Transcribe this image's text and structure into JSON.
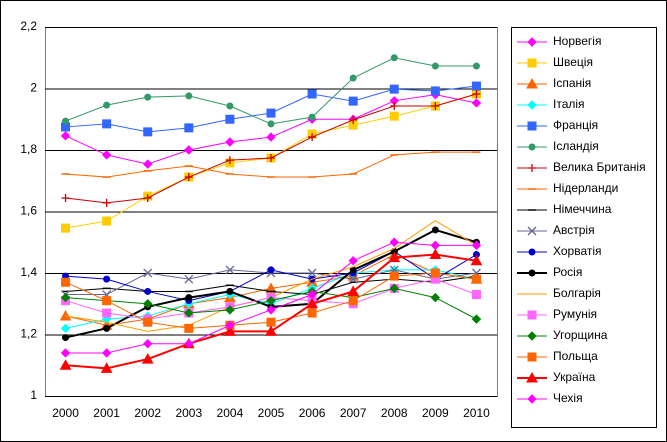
{
  "chart_data": {
    "type": "line",
    "categories": [
      "2000",
      "2001",
      "2002",
      "2003",
      "2004",
      "2005",
      "2006",
      "2007",
      "2008",
      "2009",
      "2010"
    ],
    "ylim": [
      1,
      2.2
    ],
    "yticks": [
      1,
      {
        "value": 1.2,
        "label": "1,2"
      },
      {
        "value": 1.4,
        "label": "1,4"
      },
      {
        "value": 1.6,
        "label": "1,6"
      },
      {
        "value": 1.8,
        "label": "1,8"
      },
      2,
      {
        "value": 2.2,
        "label": "2,2"
      }
    ],
    "grid": true,
    "legend": "right",
    "series": [
      {
        "name": "Норвегія",
        "color": "#ff00ff",
        "marker": "diamond",
        "values": [
          1.846,
          1.784,
          1.754,
          1.8,
          1.826,
          1.842,
          1.9,
          1.9,
          1.96,
          1.98,
          1.953
        ]
      },
      {
        "name": "Швеція",
        "color": "#ffcc00",
        "marker": "square",
        "values": [
          1.546,
          1.569,
          1.65,
          1.712,
          1.758,
          1.774,
          1.852,
          1.881,
          1.91,
          1.943,
          1.982
        ]
      },
      {
        "name": "Іспанія",
        "color": "#ff6600",
        "marker": "triangle",
        "values": [
          1.26,
          1.23,
          1.25,
          1.3,
          1.32,
          1.35,
          1.37,
          1.39,
          1.46,
          1.4,
          1.38
        ]
      },
      {
        "name": "Італія",
        "color": "#00ffff",
        "marker": "diamond",
        "values": [
          1.22,
          1.25,
          1.26,
          1.3,
          1.33,
          1.3,
          1.35,
          1.4,
          1.41,
          1.41,
          1.38
        ]
      },
      {
        "name": "Франція",
        "color": "#3366ff",
        "marker": "square",
        "values": [
          1.875,
          1.885,
          1.859,
          1.872,
          1.9,
          1.92,
          1.982,
          1.959,
          1.998,
          1.992,
          2.008
        ]
      },
      {
        "name": "Ісландія",
        "color": "#339966",
        "marker": "circle",
        "values": [
          1.894,
          1.946,
          1.972,
          1.976,
          1.943,
          1.885,
          1.907,
          2.034,
          2.1,
          2.073,
          2.073
        ]
      },
      {
        "name": "Велика Британія",
        "color": "#cc0000",
        "marker": "plus",
        "values": [
          1.644,
          1.628,
          1.644,
          1.712,
          1.767,
          1.774,
          1.842,
          1.898,
          1.943,
          1.943,
          1.982
        ]
      },
      {
        "name": "Нідерланди",
        "color": "#ff6600",
        "marker": "dash",
        "values": [
          1.722,
          1.712,
          1.732,
          1.748,
          1.722,
          1.712,
          1.712,
          1.722,
          1.784,
          1.793,
          1.793
        ]
      },
      {
        "name": "Німеччина",
        "color": "#000000",
        "marker": "dash",
        "values": [
          1.34,
          1.35,
          1.34,
          1.34,
          1.36,
          1.34,
          1.33,
          1.37,
          1.38,
          1.37,
          1.39
        ]
      },
      {
        "name": "Австрія",
        "color": "#666699",
        "marker": "x",
        "values": [
          1.33,
          1.33,
          1.4,
          1.38,
          1.41,
          1.4,
          1.4,
          1.38,
          1.41,
          1.38,
          1.4
        ]
      },
      {
        "name": "Хорватія",
        "color": "#0000cc",
        "marker": "circle",
        "values": [
          1.39,
          1.38,
          1.34,
          1.31,
          1.34,
          1.41,
          1.38,
          1.4,
          1.47,
          1.38,
          1.46
        ]
      },
      {
        "name": "Росія",
        "color": "#000000",
        "marker": "circle",
        "width": 2,
        "values": [
          1.19,
          1.22,
          1.29,
          1.32,
          1.34,
          1.29,
          1.3,
          1.41,
          1.47,
          1.54,
          1.5
        ]
      },
      {
        "name": "Болгарія",
        "color": "#ff9900",
        "marker": "none",
        "values": [
          1.26,
          1.24,
          1.21,
          1.23,
          1.29,
          1.32,
          1.38,
          1.42,
          1.48,
          1.57,
          1.49
        ]
      },
      {
        "name": "Румунія",
        "color": "#ff66ff",
        "marker": "square",
        "values": [
          1.31,
          1.27,
          1.25,
          1.27,
          1.29,
          1.32,
          1.31,
          1.3,
          1.35,
          1.38,
          1.33
        ]
      },
      {
        "name": "Угорщина",
        "color": "#008000",
        "marker": "diamond",
        "values": [
          1.32,
          1.31,
          1.3,
          1.27,
          1.28,
          1.31,
          1.34,
          1.32,
          1.35,
          1.32,
          1.25
        ]
      },
      {
        "name": "Польща",
        "color": "#ff6600",
        "marker": "square",
        "values": [
          1.37,
          1.31,
          1.24,
          1.22,
          1.23,
          1.24,
          1.27,
          1.31,
          1.39,
          1.4,
          1.38
        ]
      },
      {
        "name": "Україна",
        "color": "#ff0000",
        "marker": "triangle",
        "width": 2,
        "values": [
          1.1,
          1.09,
          1.12,
          1.17,
          1.21,
          1.21,
          1.3,
          1.34,
          1.45,
          1.46,
          1.44
        ]
      },
      {
        "name": "Чехія",
        "color": "#ff00ff",
        "marker": "diamond",
        "values": [
          1.14,
          1.14,
          1.17,
          1.17,
          1.23,
          1.28,
          1.33,
          1.44,
          1.5,
          1.49,
          1.49
        ]
      }
    ]
  }
}
